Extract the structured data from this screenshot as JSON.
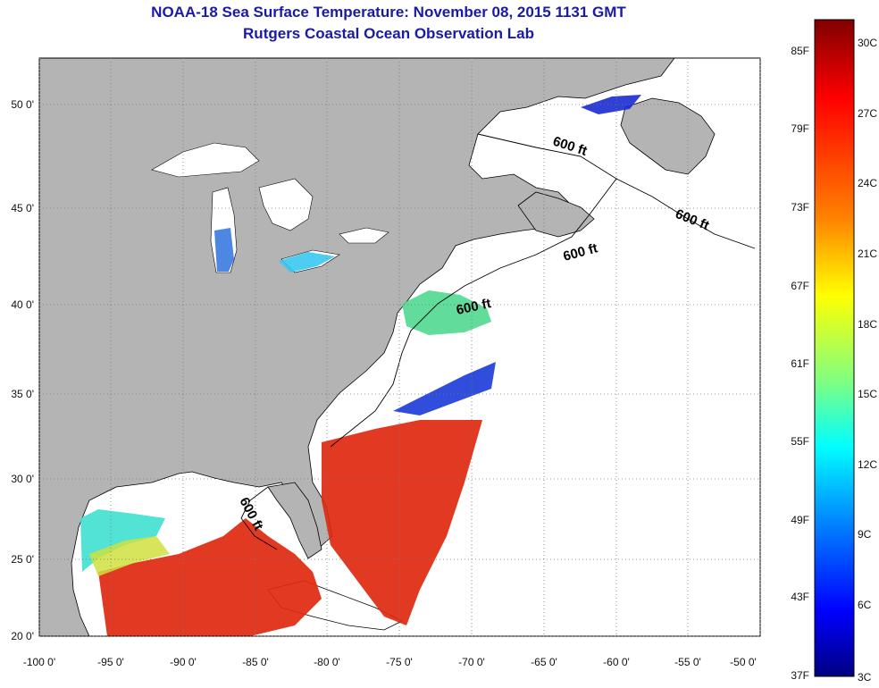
{
  "title": {
    "line1": "NOAA-18 Sea Surface Temperature:  November 08, 2015 1131 GMT",
    "line2": "Rutgers Coastal Ocean Observation Lab"
  },
  "map": {
    "lat_labels": [
      "50 0'",
      "45 0'",
      "40 0'",
      "35 0'",
      "30 0'",
      "25 0'",
      "20 0'"
    ],
    "lon_labels": [
      "-100 0'",
      "-95 0'",
      "-90 0'",
      "-85 0'",
      "-80 0'",
      "-75 0'",
      "-70 0'",
      "-65 0'",
      "-60 0'",
      "-55 0'",
      "-50 0'"
    ],
    "contour_label": "600 ft",
    "land_color": "#b4b4b4",
    "ocean_color": "#ffffff"
  },
  "colorbar": {
    "f_labels": [
      "85F",
      "79F",
      "73F",
      "67F",
      "61F",
      "55F",
      "49F",
      "43F",
      "37F"
    ],
    "c_labels": [
      "30C",
      "27C",
      "24C",
      "21C",
      "18C",
      "15C",
      "12C",
      "9C",
      "6C",
      "3C"
    ],
    "stops": [
      "#800000",
      "#ff0000",
      "#ff8000",
      "#ffff00",
      "#80ff80",
      "#00ffff",
      "#0080ff",
      "#0000ff",
      "#000080"
    ]
  }
}
